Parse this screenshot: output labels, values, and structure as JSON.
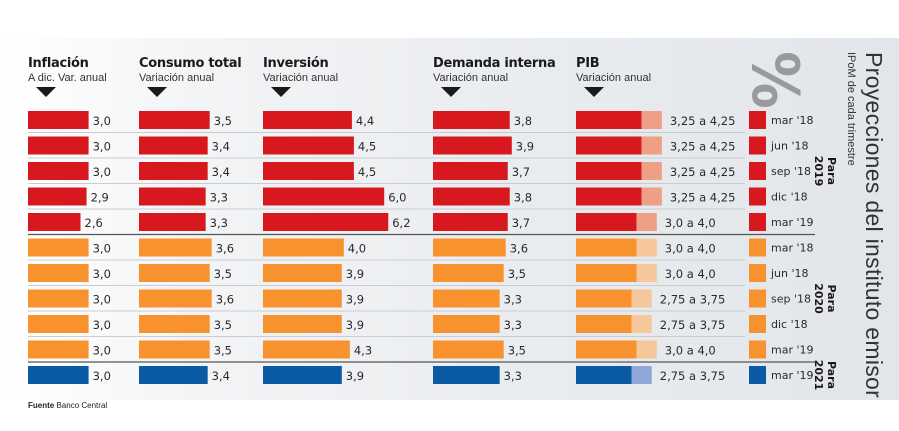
{
  "title": "Proyecciones del instituto emisor",
  "subtitle": "IPoM de cada trimestre",
  "unit_symbol": "%",
  "source": {
    "label": "Fuente",
    "value": "Banco Central"
  },
  "colors": {
    "2019": "#d7191f",
    "2019_range": "#ef9f85",
    "2020": "#f7922e",
    "2020_range": "#f6c79b",
    "2021": "#0b5aa4",
    "2021_range": "#8fa7d6"
  },
  "chart_data": {
    "type": "bar",
    "orientation": "horizontal",
    "title": "Proyecciones del instituto emisor",
    "subtitle": "IPoM de cada trimestre",
    "unit": "%",
    "columns": [
      {
        "key": "inflacion",
        "title": "Inflación",
        "subtitle": "A dic. Var. anual"
      },
      {
        "key": "consumo",
        "title": "Consumo total",
        "subtitle": "Variación anual"
      },
      {
        "key": "inversion",
        "title": "Inversión",
        "subtitle": "Variación anual"
      },
      {
        "key": "demanda",
        "title": "Demanda interna",
        "subtitle": "Variación anual"
      },
      {
        "key": "pib",
        "title": "PIB",
        "subtitle": "Variación anual"
      }
    ],
    "groups": [
      {
        "key": "2019",
        "label_line1": "Para",
        "label_line2": "2019"
      },
      {
        "key": "2020",
        "label_line1": "Para",
        "label_line2": "2020"
      },
      {
        "key": "2021",
        "label_line1": "Para",
        "label_line2": "2021"
      }
    ],
    "rows": [
      {
        "group": "2019",
        "ipom": "mar '18",
        "inflacion": 3.0,
        "consumo": 3.5,
        "inversion": 4.4,
        "demanda": 3.8,
        "pib": [
          3.25,
          4.25
        ],
        "inflacion_label": "3,0",
        "consumo_label": "3,5",
        "inversion_label": "4,4",
        "demanda_label": "3,8",
        "pib_label": "3,25 a 4,25"
      },
      {
        "group": "2019",
        "ipom": "jun '18",
        "inflacion": 3.0,
        "consumo": 3.4,
        "inversion": 4.5,
        "demanda": 3.9,
        "pib": [
          3.25,
          4.25
        ],
        "inflacion_label": "3,0",
        "consumo_label": "3,4",
        "inversion_label": "4,5",
        "demanda_label": "3,9",
        "pib_label": "3,25 a 4,25"
      },
      {
        "group": "2019",
        "ipom": "sep '18",
        "inflacion": 3.0,
        "consumo": 3.4,
        "inversion": 4.5,
        "demanda": 3.7,
        "pib": [
          3.25,
          4.25
        ],
        "inflacion_label": "3,0",
        "consumo_label": "3,4",
        "inversion_label": "4,5",
        "demanda_label": "3,7",
        "pib_label": "3,25 a 4,25"
      },
      {
        "group": "2019",
        "ipom": "dic '18",
        "inflacion": 2.9,
        "consumo": 3.3,
        "inversion": 6.0,
        "demanda": 3.8,
        "pib": [
          3.25,
          4.25
        ],
        "inflacion_label": "2,9",
        "consumo_label": "3,3",
        "inversion_label": "6,0",
        "demanda_label": "3,8",
        "pib_label": "3,25 a 4,25"
      },
      {
        "group": "2019",
        "ipom": "mar '19",
        "inflacion": 2.6,
        "consumo": 3.3,
        "inversion": 6.2,
        "demanda": 3.7,
        "pib": [
          3.0,
          4.0
        ],
        "inflacion_label": "2,6",
        "consumo_label": "3,3",
        "inversion_label": "6,2",
        "demanda_label": "3,7",
        "pib_label": "3,0 a 4,0"
      },
      {
        "group": "2020",
        "ipom": "mar '18",
        "inflacion": 3.0,
        "consumo": 3.6,
        "inversion": 4.0,
        "demanda": 3.6,
        "pib": [
          3.0,
          4.0
        ],
        "inflacion_label": "3,0",
        "consumo_label": "3,6",
        "inversion_label": "4,0",
        "demanda_label": "3,6",
        "pib_label": "3,0 a 4,0"
      },
      {
        "group": "2020",
        "ipom": "jun '18",
        "inflacion": 3.0,
        "consumo": 3.5,
        "inversion": 3.9,
        "demanda": 3.5,
        "pib": [
          3.0,
          4.0
        ],
        "inflacion_label": "3,0",
        "consumo_label": "3,5",
        "inversion_label": "3,9",
        "demanda_label": "3,5",
        "pib_label": "3,0 a 4,0"
      },
      {
        "group": "2020",
        "ipom": "sep '18",
        "inflacion": 3.0,
        "consumo": 3.6,
        "inversion": 3.9,
        "demanda": 3.3,
        "pib": [
          2.75,
          3.75
        ],
        "inflacion_label": "3,0",
        "consumo_label": "3,6",
        "inversion_label": "3,9",
        "demanda_label": "3,3",
        "pib_label": "2,75 a 3,75"
      },
      {
        "group": "2020",
        "ipom": "dic '18",
        "inflacion": 3.0,
        "consumo": 3.5,
        "inversion": 3.9,
        "demanda": 3.3,
        "pib": [
          2.75,
          3.75
        ],
        "inflacion_label": "3,0",
        "consumo_label": "3,5",
        "inversion_label": "3,9",
        "demanda_label": "3,3",
        "pib_label": "2,75 a 3,75"
      },
      {
        "group": "2020",
        "ipom": "mar '19",
        "inflacion": 3.0,
        "consumo": 3.5,
        "inversion": 4.3,
        "demanda": 3.5,
        "pib": [
          3.0,
          4.0
        ],
        "inflacion_label": "3,0",
        "consumo_label": "3,5",
        "inversion_label": "4,3",
        "demanda_label": "3,5",
        "pib_label": "3,0 a 4,0"
      },
      {
        "group": "2021",
        "ipom": "mar '19",
        "inflacion": 3.0,
        "consumo": 3.4,
        "inversion": 3.9,
        "demanda": 3.3,
        "pib": [
          2.75,
          3.75
        ],
        "inflacion_label": "3,0",
        "consumo_label": "3,4",
        "inversion_label": "3,9",
        "demanda_label": "3,3",
        "pib_label": "2,75 a 3,75"
      }
    ],
    "legend": "right",
    "grid": false
  }
}
